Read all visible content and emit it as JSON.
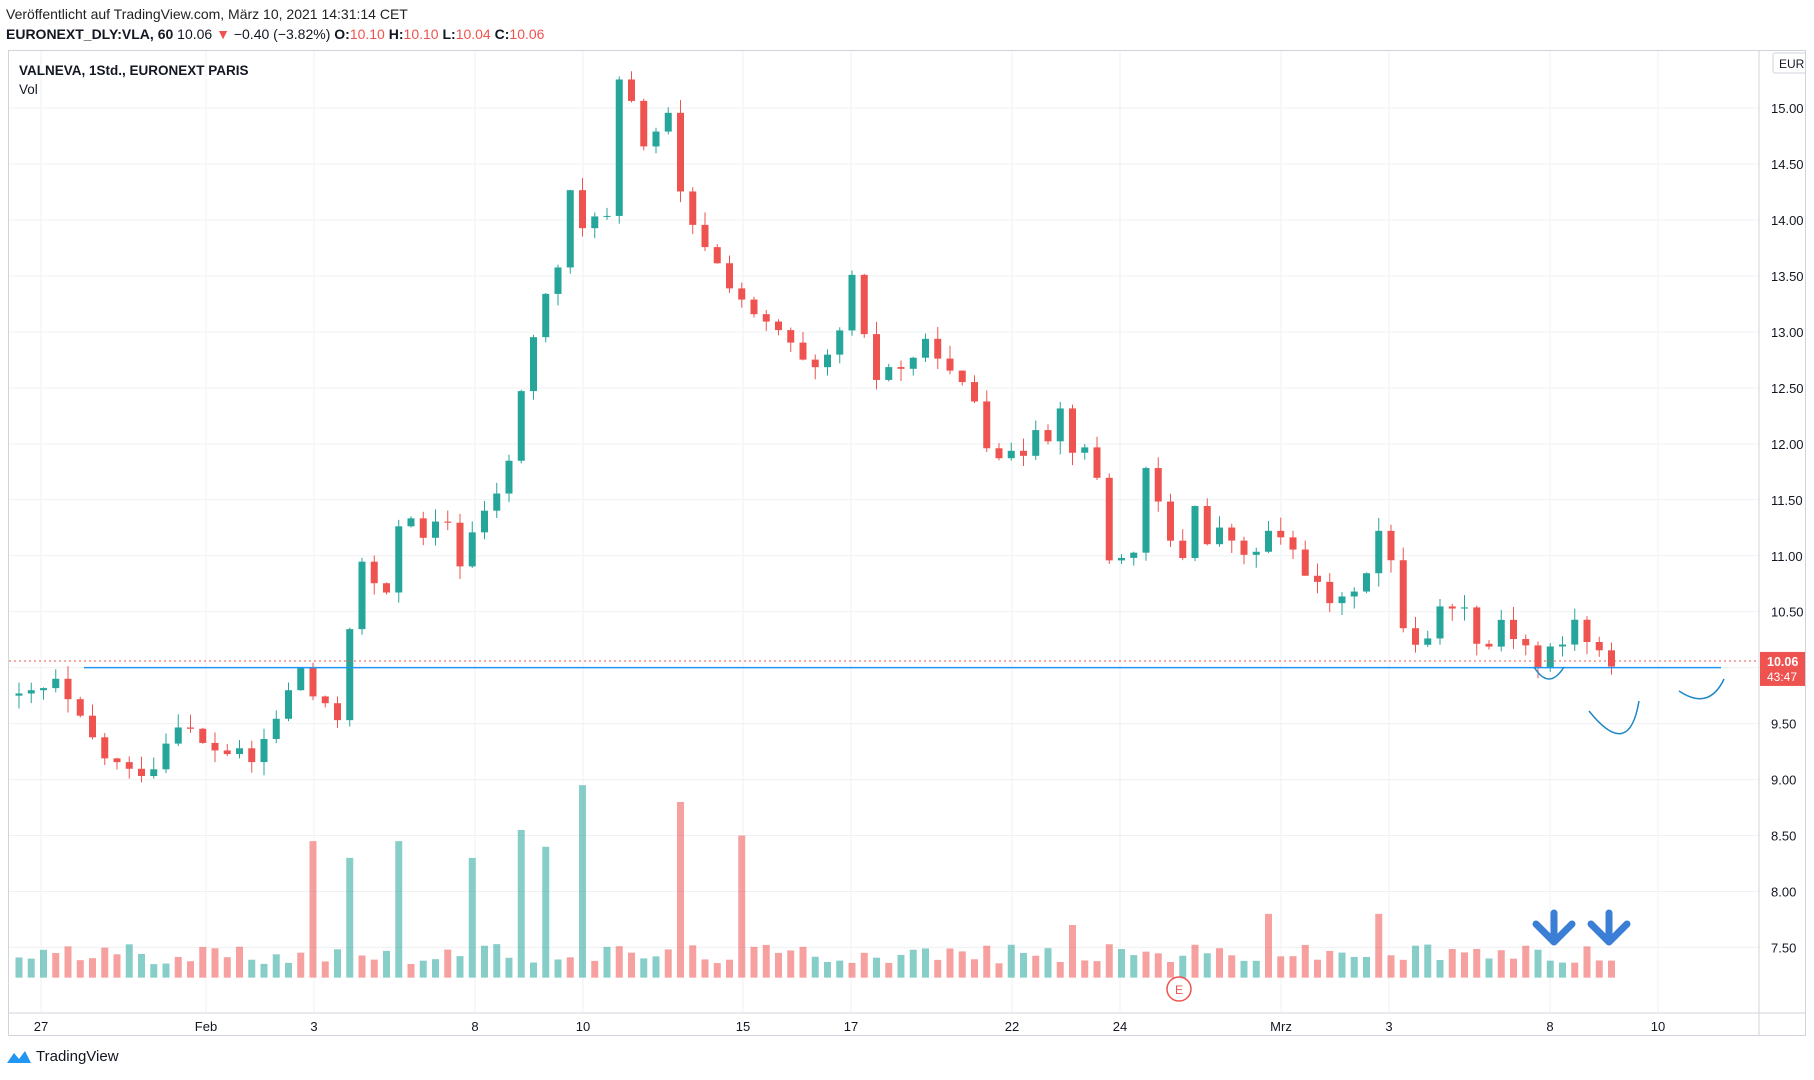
{
  "header": {
    "published": "Veröffentlicht auf TradingView.com, März 10, 2021 14:31:14 CET",
    "symbol": "EURONEXT_DLY:VLA, 60",
    "last": "10.06",
    "change": "−0.40 (−3.82%)",
    "o_label": "O:",
    "o": "10.10",
    "h_label": "H:",
    "h": "10.10",
    "l_label": "L:",
    "l": "10.04",
    "c_label": "C:",
    "c": "10.06"
  },
  "legend": {
    "title": "VALNEVA, 1Std., EURONEXT PARIS",
    "volume": "Vol"
  },
  "currency": "EUR",
  "price_badge": {
    "price": "10.06",
    "countdown": "43:47"
  },
  "earnings_marker": "E",
  "footer": {
    "brand": "TradingView"
  },
  "colors": {
    "up": "#26a69a",
    "down": "#ef5350",
    "grid": "#eef0f3",
    "support": "#2196f3",
    "annotation": "#1e88c7"
  },
  "icons": [
    "tradingview-logo-icon",
    "arrow-down-icon"
  ],
  "chart_data": {
    "type": "candlestick",
    "title": "VALNEVA, 1Std., EURONEXT PARIS",
    "yaxis": {
      "ticks": [
        "15.00",
        "14.50",
        "14.00",
        "13.50",
        "13.00",
        "12.50",
        "12.00",
        "11.50",
        "11.00",
        "10.50",
        "10.00",
        "9.50",
        "9.00",
        "8.50",
        "8.00",
        "7.50"
      ],
      "ylim": [
        7.2,
        15.6
      ],
      "currency": "EUR"
    },
    "xaxis": {
      "ticks": [
        "27",
        "Feb",
        "3",
        "8",
        "10",
        "15",
        "17",
        "22",
        "24",
        "Mrz",
        "3",
        "8",
        "10"
      ]
    },
    "support_level": 10.0,
    "last_price": 10.06,
    "path": [
      [
        0,
        9.7
      ],
      [
        3,
        9.85
      ],
      [
        5,
        9.5
      ],
      [
        7,
        9.2
      ],
      [
        9,
        9.05
      ],
      [
        11,
        9.15
      ],
      [
        13,
        9.55
      ],
      [
        15,
        9.3
      ],
      [
        17,
        9.25
      ],
      [
        19,
        9.15
      ],
      [
        21,
        9.55
      ],
      [
        23,
        10.0
      ],
      [
        24,
        9.75
      ],
      [
        25,
        9.6
      ],
      [
        26,
        9.55
      ],
      [
        27,
        10.4
      ],
      [
        28,
        10.9
      ],
      [
        29,
        10.75
      ],
      [
        30,
        10.6
      ],
      [
        31,
        11.3
      ],
      [
        32,
        11.4
      ],
      [
        33,
        11.1
      ],
      [
        34,
        11.25
      ],
      [
        35,
        11.3
      ],
      [
        36,
        10.95
      ],
      [
        37,
        11.2
      ],
      [
        38,
        11.35
      ],
      [
        40,
        11.8
      ],
      [
        41,
        12.5
      ],
      [
        42,
        12.95
      ],
      [
        43,
        13.3
      ],
      [
        44,
        13.6
      ],
      [
        45,
        14.2
      ],
      [
        46,
        13.9
      ],
      [
        47,
        14.1
      ],
      [
        48,
        14.0
      ],
      [
        49,
        15.2
      ],
      [
        50,
        15.0
      ],
      [
        51,
        14.7
      ],
      [
        52,
        14.8
      ],
      [
        53,
        14.9
      ],
      [
        54,
        14.2
      ],
      [
        55,
        13.9
      ],
      [
        56,
        13.8
      ],
      [
        57,
        13.6
      ],
      [
        59,
        13.3
      ],
      [
        60,
        13.1
      ],
      [
        62,
        13.0
      ],
      [
        64,
        12.7
      ],
      [
        65,
        12.6
      ],
      [
        66,
        12.75
      ],
      [
        67,
        13.0
      ],
      [
        68,
        13.45
      ],
      [
        69,
        12.9
      ],
      [
        70,
        12.6
      ],
      [
        71,
        12.7
      ],
      [
        72,
        12.65
      ],
      [
        73,
        12.8
      ],
      [
        74,
        12.85
      ],
      [
        75,
        12.85
      ],
      [
        76,
        12.6
      ],
      [
        77,
        12.5
      ],
      [
        78,
        12.4
      ],
      [
        79,
        12.05
      ],
      [
        80,
        11.95
      ],
      [
        81,
        11.85
      ],
      [
        82,
        11.95
      ],
      [
        83,
        12.2
      ],
      [
        84,
        12.1
      ],
      [
        85,
        12.3
      ],
      [
        86,
        12.0
      ],
      [
        87,
        11.9
      ],
      [
        88,
        11.7
      ],
      [
        89,
        11.0
      ],
      [
        90,
        10.95
      ],
      [
        91,
        11.1
      ],
      [
        92,
        11.7
      ],
      [
        93,
        11.45
      ],
      [
        94,
        11.1
      ],
      [
        95,
        11.0
      ],
      [
        96,
        11.5
      ],
      [
        97,
        11.1
      ],
      [
        98,
        11.2
      ],
      [
        99,
        11.15
      ],
      [
        100,
        10.95
      ],
      [
        101,
        11.05
      ],
      [
        102,
        11.2
      ],
      [
        103,
        11.1
      ],
      [
        104,
        11.05
      ],
      [
        105,
        10.9
      ],
      [
        106,
        10.7
      ],
      [
        107,
        10.6
      ],
      [
        108,
        10.55
      ],
      [
        109,
        10.75
      ],
      [
        110,
        10.9
      ],
      [
        111,
        11.2
      ],
      [
        112,
        10.9
      ],
      [
        113,
        10.4
      ],
      [
        114,
        10.25
      ],
      [
        115,
        10.3
      ],
      [
        116,
        10.5
      ],
      [
        117,
        10.6
      ],
      [
        118,
        10.5
      ],
      [
        119,
        10.3
      ],
      [
        120,
        10.2
      ],
      [
        121,
        10.45
      ],
      [
        122,
        10.3
      ],
      [
        123,
        10.2
      ],
      [
        124,
        10.0
      ],
      [
        125,
        10.15
      ],
      [
        126,
        10.2
      ],
      [
        127,
        10.45
      ],
      [
        128,
        10.2
      ],
      [
        129,
        10.1
      ],
      [
        130,
        10.06
      ]
    ],
    "volume_spikes": [
      [
        24,
        8.45
      ],
      [
        27,
        8.3
      ],
      [
        31,
        8.45
      ],
      [
        37,
        8.3
      ],
      [
        41,
        8.55
      ],
      [
        43,
        8.4
      ],
      [
        46,
        8.95
      ],
      [
        54,
        8.8
      ],
      [
        59,
        8.5
      ],
      [
        86,
        7.7
      ],
      [
        102,
        7.8
      ],
      [
        111,
        7.8
      ]
    ]
  }
}
